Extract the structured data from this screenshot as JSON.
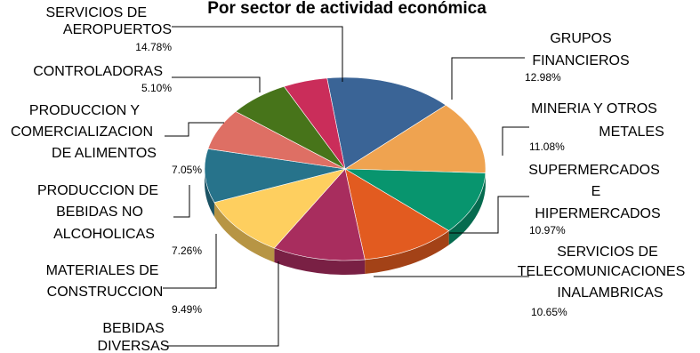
{
  "chart_data": {
    "type": "pie",
    "title": "Por sector de actividad económica",
    "slices": [
      {
        "label": "SERVICIOS DE AEROPUERTOS",
        "value": 14.78,
        "value_label": "14.78%",
        "color": "#3A6496"
      },
      {
        "label": "GRUPOS FINANCIEROS",
        "value": 12.98,
        "value_label": "12.98%",
        "color": "#EFA350"
      },
      {
        "label": "MINERIA Y OTROS METALES",
        "value": 11.08,
        "value_label": "11.08%",
        "color": "#08956E"
      },
      {
        "label": "SUPERMERCADOS E HIPERMERCADOS",
        "value": 10.97,
        "value_label": "10.97%",
        "color": "#E25B20"
      },
      {
        "label": "SERVICIOS DE TELECOMUNICACIONES INALAMBRICAS",
        "value": 10.65,
        "value_label": "10.65%",
        "color": "#A82D5E"
      },
      {
        "label": "BEBIDAS DIVERSAS",
        "value": 10.64,
        "value_label": "",
        "color": "#FECF5F"
      },
      {
        "label": "MATERIALES DE CONSTRUCCION",
        "value": 9.49,
        "value_label": "9.49%",
        "color": "#27738B"
      },
      {
        "label": "PRODUCCION DE BEBIDAS NO ALCOHOLICAS",
        "value": 7.26,
        "value_label": "7.26%",
        "color": "#DE6F64"
      },
      {
        "label": "PRODUCCION Y COMERCIALIZACION DE ALIMENTOS",
        "value": 7.05,
        "value_label": "7.05%",
        "color": "#47741A"
      },
      {
        "label": "CONTROLADORAS",
        "value": 5.1,
        "value_label": "5.10%",
        "color": "#CA2D5A"
      }
    ]
  }
}
